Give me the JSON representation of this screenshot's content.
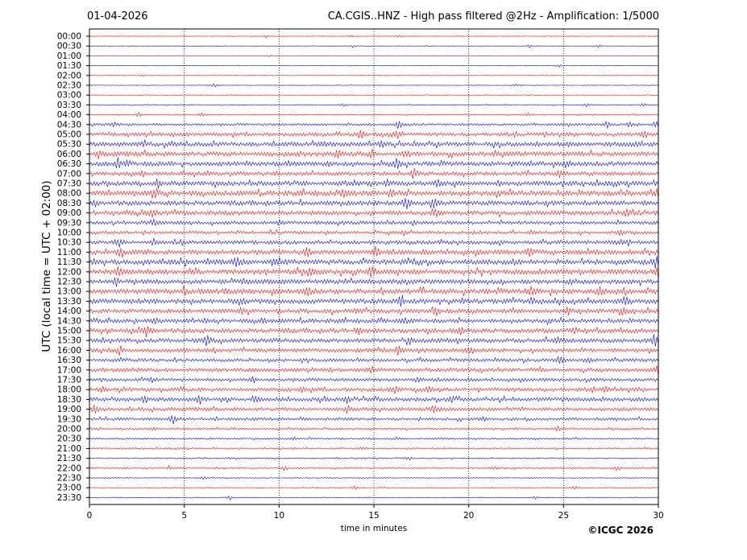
{
  "chart_data": {
    "type": "line",
    "date": "01-04-2026",
    "title": "CA.CGIS..HNZ - High pass filtered @2Hz - Amplification: 1/5000",
    "xlabel": "time in minutes",
    "ylabel": "UTC (local time = UTC + 02:00)",
    "copyright": "©ICGC 2026",
    "xlim": [
      0,
      30
    ],
    "x_ticks": [
      "0",
      "5",
      "10",
      "15",
      "20",
      "25",
      "30"
    ],
    "x_tick_values": [
      0,
      5,
      10,
      15,
      20,
      25,
      30
    ],
    "grid": "vertical dotted at 5-minute intervals",
    "trace_colors": [
      "#ff0000",
      "#0000ff"
    ],
    "row_labels": [
      "00:00",
      "00:30",
      "01:00",
      "01:30",
      "02:00",
      "02:30",
      "03:00",
      "03:30",
      "04:00",
      "04:30",
      "05:00",
      "05:30",
      "06:00",
      "06:30",
      "07:00",
      "07:30",
      "08:00",
      "08:30",
      "09:00",
      "09:30",
      "10:00",
      "10:30",
      "11:00",
      "11:30",
      "12:00",
      "12:30",
      "13:00",
      "13:30",
      "14:00",
      "14:30",
      "15:00",
      "15:30",
      "16:00",
      "16:30",
      "17:00",
      "17:30",
      "18:00",
      "18:30",
      "19:00",
      "19:30",
      "20:00",
      "20:30",
      "21:00",
      "21:30",
      "22:00",
      "22:30",
      "23:00",
      "23:30"
    ],
    "noise_level": [
      0.3,
      0.3,
      0.2,
      0.3,
      0.3,
      0.3,
      0.3,
      0.5,
      0.6,
      1.2,
      1.8,
      2.2,
      2.4,
      2.3,
      2.0,
      2.4,
      2.6,
      2.4,
      2.3,
      1.8,
      1.6,
      2.0,
      2.3,
      2.6,
      2.6,
      2.4,
      2.6,
      2.5,
      2.2,
      2.1,
      2.3,
      2.2,
      2.0,
      1.7,
      1.9,
      1.6,
      1.9,
      2.0,
      1.8,
      1.4,
      1.0,
      0.9,
      0.8,
      0.7,
      0.8,
      0.5,
      0.4,
      0.4
    ],
    "events": [
      [
        [
          9.3,
          2
        ],
        [
          13.8,
          2
        ],
        [
          16.3,
          2
        ]
      ],
      [
        [
          13.9,
          2
        ],
        [
          23.2,
          2
        ],
        [
          26.9,
          2
        ]
      ],
      [
        [
          9.5,
          1.5
        ]
      ],
      [
        [
          24.8,
          2
        ]
      ],
      [
        [
          2.8,
          1.5
        ]
      ],
      [
        [
          6.6,
          2.5
        ],
        [
          22.5,
          2
        ]
      ],
      [],
      [
        [
          13.4,
          2
        ],
        [
          26.2,
          2
        ],
        [
          29.2,
          2
        ]
      ],
      [
        [
          2.6,
          3
        ],
        [
          5.9,
          2.5
        ],
        [
          23.1,
          2.5
        ]
      ],
      [
        [
          1.3,
          3
        ],
        [
          16.3,
          6
        ],
        [
          27.3,
          5
        ],
        [
          28.5,
          3
        ],
        [
          29.9,
          5
        ]
      ],
      [
        [
          14.3,
          6
        ],
        [
          16.2,
          5
        ],
        [
          29.3,
          5
        ]
      ],
      [
        [
          2.9,
          4
        ],
        [
          12.4,
          3
        ],
        [
          15.4,
          4
        ],
        [
          28.8,
          3
        ]
      ],
      [
        [
          0.5,
          3
        ],
        [
          13.1,
          4
        ],
        [
          14.9,
          5
        ],
        [
          16.7,
          4
        ]
      ],
      [
        [
          1.5,
          7
        ],
        [
          12.6,
          4
        ],
        [
          16.2,
          6
        ],
        [
          25.1,
          3
        ]
      ],
      [
        [
          2.8,
          5
        ],
        [
          17.1,
          7
        ],
        [
          24.8,
          4
        ]
      ],
      [
        [
          3.6,
          5
        ],
        [
          14.0,
          3
        ],
        [
          15.7,
          4
        ],
        [
          18.4,
          5
        ],
        [
          21.6,
          3
        ]
      ],
      [
        [
          3.5,
          5
        ],
        [
          13.4,
          5
        ],
        [
          15.9,
          4
        ],
        [
          30.0,
          6
        ]
      ],
      [
        [
          0.2,
          3
        ],
        [
          16.7,
          6
        ],
        [
          18.2,
          5
        ]
      ],
      [
        [
          3.3,
          4
        ],
        [
          18.3,
          4
        ],
        [
          28.3,
          4
        ]
      ],
      [
        [
          3.4,
          5
        ],
        [
          10.0,
          3
        ],
        [
          17.1,
          3
        ]
      ],
      [
        [
          16.6,
          3
        ],
        [
          28.0,
          3
        ]
      ],
      [
        [
          1.6,
          6
        ],
        [
          3.4,
          4
        ],
        [
          28.4,
          3
        ]
      ],
      [
        [
          1.6,
          5
        ],
        [
          11.5,
          6
        ],
        [
          15.1,
          7
        ],
        [
          23.2,
          6
        ]
      ],
      [
        [
          0.2,
          4
        ],
        [
          7.8,
          7
        ],
        [
          10.0,
          4
        ],
        [
          29.9,
          7
        ]
      ],
      [
        [
          1.5,
          5
        ],
        [
          11.7,
          4
        ],
        [
          14.9,
          8
        ],
        [
          30.0,
          7
        ]
      ],
      [
        [
          1.4,
          5
        ],
        [
          8.1,
          4
        ],
        [
          25.4,
          4
        ]
      ],
      [
        [
          5.0,
          4
        ],
        [
          11.5,
          6
        ],
        [
          23.3,
          6
        ],
        [
          26.9,
          5
        ]
      ],
      [
        [
          8.1,
          4
        ],
        [
          16.4,
          7
        ],
        [
          23.3,
          4
        ],
        [
          28.2,
          4
        ]
      ],
      [
        [
          8.0,
          4
        ],
        [
          18.3,
          4
        ],
        [
          25.2,
          4
        ],
        [
          28.1,
          4
        ]
      ],
      [
        [
          3.5,
          4
        ],
        [
          9.2,
          4
        ],
        [
          16.6,
          4
        ]
      ],
      [
        [
          3.0,
          7
        ],
        [
          14.2,
          4
        ],
        [
          19.6,
          5
        ],
        [
          25.6,
          4
        ]
      ],
      [
        [
          6.2,
          7
        ],
        [
          16.9,
          4
        ],
        [
          24.7,
          4
        ],
        [
          29.8,
          9
        ]
      ],
      [
        [
          1.6,
          6
        ],
        [
          6.6,
          3
        ],
        [
          16.3,
          6
        ],
        [
          20.1,
          5
        ]
      ],
      [
        [
          24.8,
          5
        ],
        [
          26.3,
          3
        ]
      ],
      [
        [
          14.9,
          5
        ],
        [
          30.0,
          6
        ]
      ],
      [
        [
          3.3,
          3
        ],
        [
          8.6,
          4
        ],
        [
          17.3,
          3
        ]
      ],
      [
        [
          0.7,
          4
        ],
        [
          11.2,
          3
        ],
        [
          16.1,
          4
        ],
        [
          17.9,
          4
        ],
        [
          27.2,
          4
        ]
      ],
      [
        [
          2.9,
          5
        ],
        [
          5.8,
          6
        ],
        [
          8.8,
          4
        ],
        [
          13.6,
          4
        ],
        [
          19.1,
          3
        ]
      ],
      [
        [
          0.3,
          6
        ],
        [
          13.6,
          5
        ],
        [
          18.2,
          4
        ]
      ],
      [
        [
          4.4,
          6
        ],
        [
          20.8,
          3
        ]
      ],
      [
        [
          3.4,
          2
        ],
        [
          24.7,
          3
        ]
      ],
      [
        [
          10.8,
          2
        ],
        [
          16.2,
          2
        ]
      ],
      [
        [
          14.3,
          2
        ]
      ],
      [
        [
          16.9,
          2
        ]
      ],
      [
        [
          4.2,
          2
        ],
        [
          10.3,
          3
        ],
        [
          21.4,
          2
        ],
        [
          27.8,
          3
        ]
      ],
      [
        [
          6.0,
          2
        ]
      ],
      [
        [
          14.0,
          3
        ],
        [
          25.6,
          3
        ]
      ],
      [
        [
          7.4,
          3
        ],
        [
          23.5,
          2
        ]
      ]
    ]
  }
}
